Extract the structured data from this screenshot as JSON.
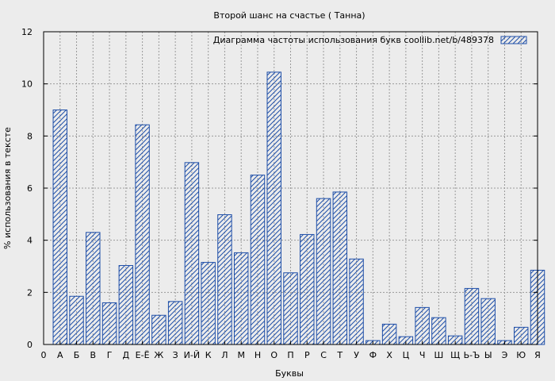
{
  "chart_data": {
    "type": "bar",
    "title": "Второй шанс на счастье ( Танна)",
    "xlabel": "Буквы",
    "ylabel": "% использования в тексте",
    "legend": {
      "label": "Диаграмма частоты использования букв  coollib.net/b/489378",
      "position": "top-right"
    },
    "ylim": [
      0,
      12
    ],
    "yticks": [
      0,
      2,
      4,
      6,
      8,
      10,
      12
    ],
    "grid": true,
    "bar_color": "#1f4fa8",
    "x_tick_labels": [
      "0",
      "А",
      "Б",
      "В",
      "Г",
      "Д",
      "Е-Ё",
      "Ж",
      "З",
      "И-Й",
      "К",
      "Л",
      "М",
      "Н",
      "О",
      "П",
      "Р",
      "С",
      "Т",
      "У",
      "Ф",
      "Х",
      "Ц",
      "Ч",
      "Ш",
      "Щ",
      "Ь-Ъ",
      "Ы",
      "Э",
      "Ю",
      "Я"
    ],
    "categories": [
      "А",
      "Б",
      "В",
      "Г",
      "Д",
      "Е-Ё",
      "Ж",
      "З",
      "И-Й",
      "К",
      "Л",
      "М",
      "Н",
      "О",
      "П",
      "Р",
      "С",
      "Т",
      "У",
      "Ф",
      "Х",
      "Ц",
      "Ч",
      "Ш",
      "Щ",
      "Ь-Ъ",
      "Ы",
      "Э",
      "Ю",
      "Я"
    ],
    "values": [
      9.0,
      1.85,
      4.3,
      1.6,
      3.03,
      8.43,
      1.12,
      1.65,
      6.98,
      3.15,
      4.98,
      3.52,
      6.5,
      10.45,
      2.75,
      4.22,
      5.6,
      5.85,
      3.28,
      0.15,
      0.78,
      0.3,
      1.42,
      1.03,
      0.33,
      2.15,
      1.76,
      0.15,
      0.66,
      2.85
    ]
  }
}
